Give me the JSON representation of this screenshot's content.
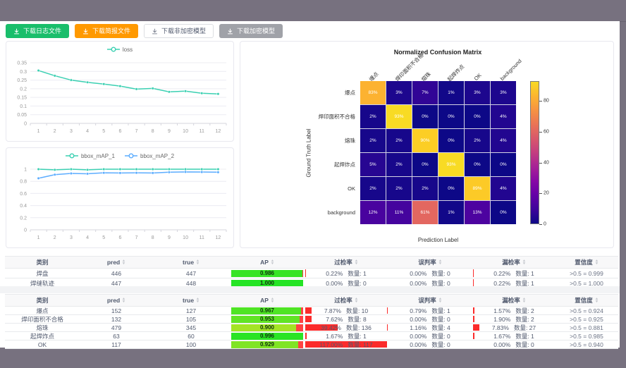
{
  "window": {
    "frame_color": "#77717f"
  },
  "toolbar": {
    "buttons": [
      {
        "name": "download-log-button",
        "label": "下载日志文件",
        "style": "green"
      },
      {
        "name": "download-brief-button",
        "label": "下载简报文件",
        "style": "orange"
      },
      {
        "name": "download-plain-model-button",
        "label": "下载非加密模型",
        "style": "plain"
      },
      {
        "name": "download-encrypted-model-button",
        "label": "下载加密模型",
        "style": "gray"
      }
    ]
  },
  "colors": {
    "teal_series": "#3bd0b2",
    "blue_series": "#5cadff",
    "rate_bar_red": "#fb2b2b",
    "ap_remainder_red": "#ff4343",
    "grid_line": "#ececf2",
    "axis_text": "#999999"
  },
  "chart_data": [
    {
      "type": "line",
      "panel": "loss",
      "x": [
        1,
        2,
        3,
        4,
        5,
        6,
        7,
        8,
        9,
        10,
        11,
        12
      ],
      "series": [
        {
          "name": "loss",
          "color": "#3bd0b2",
          "values": [
            0.305,
            0.275,
            0.25,
            0.237,
            0.227,
            0.215,
            0.198,
            0.202,
            0.182,
            0.186,
            0.174,
            0.17
          ]
        }
      ],
      "ylim": [
        0,
        0.35
      ],
      "yticks": [
        0,
        0.05,
        0.1,
        0.15,
        0.2,
        0.25,
        0.3,
        0.35
      ],
      "grid": true,
      "legend_position": "top"
    },
    {
      "type": "line",
      "panel": "map",
      "x": [
        1,
        2,
        3,
        4,
        5,
        6,
        7,
        8,
        9,
        10,
        11,
        12
      ],
      "series": [
        {
          "name": "bbox_mAP_1",
          "color": "#3bd0b2",
          "values": [
            1,
            0.99,
            1,
            0.99,
            1,
            1,
            1,
            1,
            1,
            1,
            1,
            1
          ]
        },
        {
          "name": "bbox_mAP_2",
          "color": "#5cadff",
          "values": [
            0.85,
            0.91,
            0.93,
            0.925,
            0.94,
            0.938,
            0.94,
            0.938,
            0.95,
            0.955,
            0.953,
            0.95
          ]
        }
      ],
      "ylim": [
        0,
        1
      ],
      "yticks": [
        0,
        0.2,
        0.4,
        0.6,
        0.8,
        1
      ],
      "grid": true,
      "legend_position": "top"
    },
    {
      "type": "heatmap",
      "title": "Normalized Confusion Matrix",
      "xlabel": "Prediction Label",
      "ylabel": "Ground Truth Label",
      "labels": [
        "爆点",
        "焊印面积不合格",
        "熔珠",
        "起焊炸点",
        "OK",
        "background"
      ],
      "matrix": [
        [
          83,
          3,
          7,
          1,
          3,
          3
        ],
        [
          2,
          93,
          0,
          0,
          0,
          4
        ],
        [
          2,
          2,
          90,
          0,
          2,
          4
        ],
        [
          5,
          2,
          0,
          93,
          0,
          0
        ],
        [
          2,
          2,
          2,
          0,
          89,
          4
        ],
        [
          12,
          11,
          61,
          1,
          13,
          0
        ]
      ],
      "unit": "%",
      "vmax": 93,
      "colorbar_ticks": [
        80,
        60,
        40,
        20,
        0
      ],
      "colormap": "plasma"
    }
  ],
  "tables": [
    {
      "headers": [
        {
          "label": "类别",
          "sortable": false
        },
        {
          "label": "pred",
          "sortable": true
        },
        {
          "label": "true",
          "sortable": true
        },
        {
          "label": "AP",
          "sortable": true
        },
        {
          "label": "过检率",
          "sortable": true
        },
        {
          "label": "误判率",
          "sortable": true
        },
        {
          "label": "漏检率",
          "sortable": true
        },
        {
          "label": "置信度",
          "sortable": true
        }
      ],
      "count_label": "数量:",
      "rows": [
        {
          "cls": "焊盘",
          "pred": 446,
          "true": 447,
          "ap": 0.986,
          "over": {
            "pct": 0.22,
            "n": 1
          },
          "mis": {
            "pct": 0.0,
            "n": 0
          },
          "miss": {
            "pct": 0.22,
            "n": 1
          },
          "conf": ">0.5 = 0.999"
        },
        {
          "cls": "焊缝轨迹",
          "pred": 447,
          "true": 448,
          "ap": 1.0,
          "over": {
            "pct": 0.0,
            "n": 0
          },
          "mis": {
            "pct": 0.0,
            "n": 0
          },
          "miss": {
            "pct": 0.22,
            "n": 1
          },
          "conf": ">0.5 = 1.000"
        }
      ]
    },
    {
      "headers": [
        {
          "label": "类别",
          "sortable": false
        },
        {
          "label": "pred",
          "sortable": true
        },
        {
          "label": "true",
          "sortable": true
        },
        {
          "label": "AP",
          "sortable": true
        },
        {
          "label": "过检率",
          "sortable": true
        },
        {
          "label": "误判率",
          "sortable": true
        },
        {
          "label": "漏检率",
          "sortable": true
        },
        {
          "label": "置信度",
          "sortable": true
        }
      ],
      "count_label": "数量:",
      "rows": [
        {
          "cls": "爆点",
          "pred": 152,
          "true": 127,
          "ap": 0.967,
          "over": {
            "pct": 7.87,
            "n": 10
          },
          "mis": {
            "pct": 0.79,
            "n": 1
          },
          "miss": {
            "pct": 1.57,
            "n": 2
          },
          "conf": ">0.5 = 0.924"
        },
        {
          "cls": "焊印面积不合格",
          "pred": 132,
          "true": 105,
          "ap": 0.953,
          "over": {
            "pct": 7.62,
            "n": 8
          },
          "mis": {
            "pct": 0.0,
            "n": 0
          },
          "miss": {
            "pct": 1.9,
            "n": 2
          },
          "conf": ">0.5 = 0.925"
        },
        {
          "cls": "熔珠",
          "pred": 479,
          "true": 345,
          "ap": 0.9,
          "over": {
            "pct": 39.42,
            "n": 136
          },
          "mis": {
            "pct": 1.16,
            "n": 4
          },
          "miss": {
            "pct": 7.83,
            "n": 27
          },
          "conf": ">0.5 = 0.881"
        },
        {
          "cls": "起焊炸点",
          "pred": 63,
          "true": 60,
          "ap": 0.996,
          "over": {
            "pct": 1.67,
            "n": 1
          },
          "mis": {
            "pct": 0.0,
            "n": 0
          },
          "miss": {
            "pct": 1.67,
            "n": 1
          },
          "conf": ">0.5 = 0.985"
        },
        {
          "cls": "OK",
          "pred": 117,
          "true": 100,
          "ap": 0.929,
          "over": {
            "pct": 117.0,
            "n": 117
          },
          "mis": {
            "pct": 0.0,
            "n": 0
          },
          "miss": {
            "pct": 0.0,
            "n": 0
          },
          "conf": ">0.5 = 0.940"
        }
      ]
    }
  ]
}
